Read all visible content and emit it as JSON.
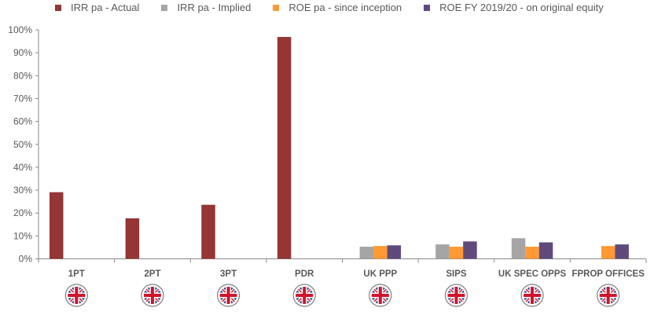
{
  "chart_data": {
    "type": "bar",
    "title": "",
    "xlabel": "",
    "ylabel": "",
    "ylim": [
      0,
      100
    ],
    "yticks": [
      "0%",
      "10%",
      "20%",
      "30%",
      "40%",
      "50%",
      "60%",
      "70%",
      "80%",
      "90%",
      "100%"
    ],
    "categories": [
      "1PT",
      "2PT",
      "3PT",
      "PDR",
      "UK PPP",
      "SIPS",
      "UK SPEC OPPS",
      "FPROP OFFICES"
    ],
    "series": [
      {
        "name": "IRR pa - Actual",
        "color": "#943634",
        "values": [
          29.1,
          17.7,
          23.6,
          96.9,
          null,
          null,
          null,
          null
        ]
      },
      {
        "name": "IRR pa - Implied",
        "color": "#A5A5A5",
        "values": [
          null,
          null,
          null,
          null,
          5.3,
          6.3,
          9.0,
          null
        ]
      },
      {
        "name": "ROE pa - since inception",
        "color": "#FF9933",
        "values": [
          null,
          null,
          null,
          null,
          5.6,
          5.3,
          5.3,
          5.6
        ]
      },
      {
        "name": "ROE FY 2019/20 - on original equity",
        "color": "#604A7B",
        "values": [
          null,
          null,
          null,
          null,
          5.9,
          7.6,
          7.2,
          6.3
        ]
      }
    ],
    "legend_position": "top",
    "grid": false,
    "category_icon": "uk-flag-icon"
  }
}
